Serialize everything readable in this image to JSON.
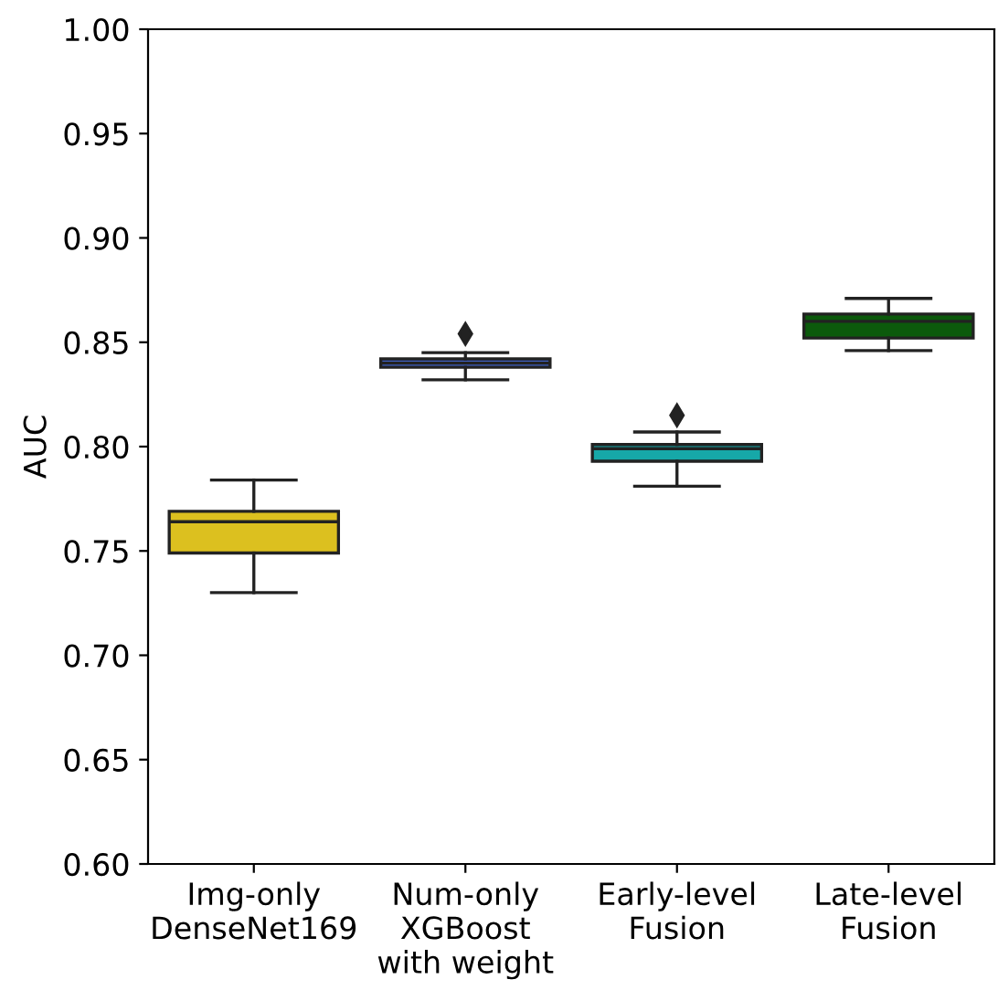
{
  "chart_data": {
    "type": "box",
    "ylabel": "AUC",
    "categories": [
      "Img-only\nDenseNet169",
      "Num-only\nXGBoost\nwith weight",
      "Early-level\nFusion",
      "Late-level\nFusion"
    ],
    "colors": [
      "#dcc01f",
      "#3e5fc0",
      "#16a8a8",
      "#0c5a0c"
    ],
    "boxes": [
      {
        "low": 0.73,
        "q1": 0.749,
        "median": 0.764,
        "q3": 0.769,
        "high": 0.784
      },
      {
        "low": 0.832,
        "q1": 0.838,
        "median": 0.84,
        "q3": 0.842,
        "high": 0.845,
        "outliers": [
          0.854
        ]
      },
      {
        "low": 0.781,
        "q1": 0.793,
        "median": 0.799,
        "q3": 0.801,
        "high": 0.807,
        "outliers": [
          0.815
        ]
      },
      {
        "low": 0.846,
        "q1": 0.852,
        "median": 0.86,
        "q3": 0.8635,
        "high": 0.871
      }
    ],
    "ylim": [
      0.6,
      1.0
    ],
    "yticks": [
      {
        "value": 0.6,
        "label": "0.60"
      },
      {
        "value": 0.65,
        "label": "0.65"
      },
      {
        "value": 0.7,
        "label": "0.70"
      },
      {
        "value": 0.75,
        "label": "0.75"
      },
      {
        "value": 0.8,
        "label": "0.80"
      },
      {
        "value": 0.85,
        "label": "0.85"
      },
      {
        "value": 0.9,
        "label": "0.90"
      },
      {
        "value": 0.95,
        "label": "0.95"
      },
      {
        "value": 1.0,
        "label": "1.00"
      }
    ],
    "grid": false,
    "marker": "diamond"
  }
}
